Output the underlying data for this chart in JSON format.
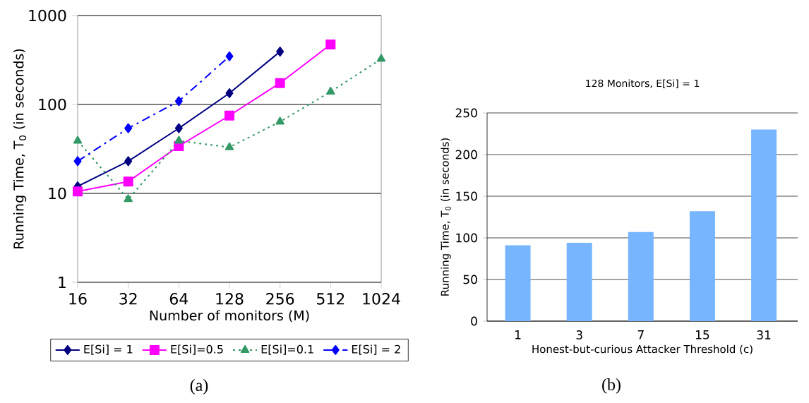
{
  "chart_data": [
    {
      "type": "line",
      "xlabel": "Number of monitors (M)",
      "ylabel": "Running Time, T$_{0}$ (in seconds)",
      "log": "xy",
      "x": [
        16,
        32,
        64,
        128,
        256,
        512,
        1024
      ],
      "xlim": [
        16,
        1024
      ],
      "xticks": [
        16,
        32,
        64,
        128,
        256,
        512,
        1024
      ],
      "ylim": [
        1,
        1000
      ],
      "yticks": [
        1,
        10,
        100,
        1000
      ],
      "grid": "y",
      "legend": "bottom",
      "series": [
        {
          "name": "E[Si] = 1",
          "color": "#000080",
          "marker": "diamond",
          "line_style": "solid",
          "values": [
            12,
            23,
            54,
            134,
            393,
            null,
            null
          ]
        },
        {
          "name": "E[Si]=0.5",
          "color": "#ff00ff",
          "marker": "square",
          "line_style": "solid",
          "values": [
            10.5,
            13.6,
            34,
            75,
            174,
            473,
            null
          ]
        },
        {
          "name": "E[Si]=0.1",
          "color": "#339966",
          "marker": "triangle",
          "line_style": "dotted",
          "values": [
            39,
            8.6,
            39,
            33,
            64,
            139,
            325
          ]
        },
        {
          "name": "E[Si] = 2",
          "color": "#0000ff",
          "marker": "diamond",
          "line_style": "dashed",
          "values": [
            23,
            54,
            109,
            348,
            null,
            null,
            null
          ]
        }
      ],
      "annotations": [
        "(a)"
      ]
    },
    {
      "type": "bar",
      "title": "128 Monitors, E[Si] = 1",
      "xlabel": "Honest-but-curious Attacker Threshold (c)",
      "ylabel": "Running Time, T$_{0}$ (in seconds)",
      "categories": [
        "1",
        "3",
        "7",
        "15",
        "31"
      ],
      "values": [
        91,
        94,
        107,
        132,
        230
      ],
      "color": "#77b5fe",
      "ylim": [
        0,
        250
      ],
      "yticks": [
        0,
        50,
        100,
        150,
        200,
        250
      ],
      "grid": "y",
      "annotations": [
        "(b)"
      ]
    }
  ]
}
